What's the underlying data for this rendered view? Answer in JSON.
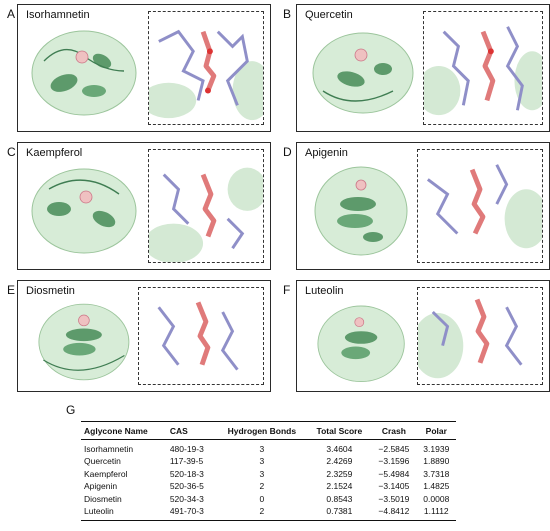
{
  "panels": [
    {
      "letter": "A",
      "title": "Isorhamnetin"
    },
    {
      "letter": "B",
      "title": "Quercetin"
    },
    {
      "letter": "C",
      "title": "Kaempferol"
    },
    {
      "letter": "D",
      "title": "Apigenin"
    },
    {
      "letter": "E",
      "title": "Diosmetin"
    },
    {
      "letter": "F",
      "title": "Luteolin"
    }
  ],
  "table": {
    "letter": "G",
    "headers": [
      "Aglycone Name",
      "CAS",
      "Hydrogen Bonds",
      "Total Score",
      "Crash",
      "Polar"
    ],
    "rows": [
      [
        "Isorhamnetin",
        "480-19-3",
        "3",
        "3.4604",
        "−2.5845",
        "3.1939"
      ],
      [
        "Quercetin",
        "117-39-5",
        "3",
        "2.4269",
        "−3.1596",
        "1.8890"
      ],
      [
        "Kaempferol",
        "520-18-3",
        "3",
        "2.3259",
        "−5.4984",
        "3.7318"
      ],
      [
        "Apigenin",
        "520-36-5",
        "2",
        "2.1524",
        "−3.1405",
        "1.4825"
      ],
      [
        "Diosmetin",
        "520-34-3",
        "0",
        "0.8543",
        "−3.5019",
        "0.0008"
      ],
      [
        "Luteolin",
        "491-70-3",
        "2",
        "0.7381",
        "−4.8412",
        "1.1112"
      ]
    ]
  },
  "colors": {
    "protein_surface": "#cfe7cf",
    "protein_helix": "#5d9a6b",
    "ligand": "#e88a8a",
    "residues": "#a6a6d6"
  }
}
